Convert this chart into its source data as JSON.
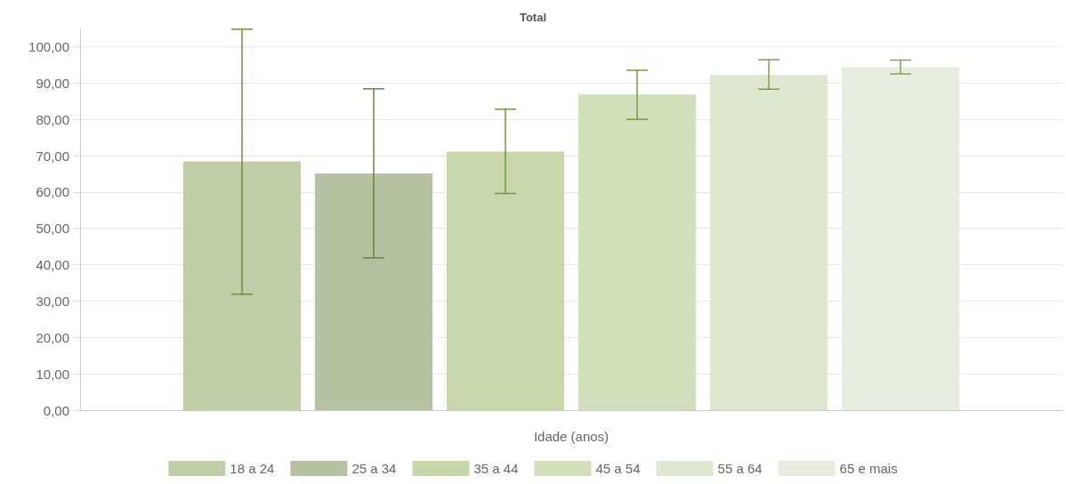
{
  "chart_data": {
    "type": "bar",
    "title": "Total",
    "xlabel": "Idade (anos)",
    "categories": [
      null
    ],
    "series": [
      {
        "name": "18 a 24",
        "color": "#bfcea6",
        "values": [
          68.4
        ],
        "errors": [
          [
            31.9,
            104.8
          ]
        ]
      },
      {
        "name": "25 a 34",
        "color": "#b5c2a2",
        "values": [
          65.1
        ],
        "errors": [
          [
            41.9,
            88.4
          ]
        ]
      },
      {
        "name": "35 a 44",
        "color": "#c8d7ab",
        "values": [
          71.1
        ],
        "errors": [
          [
            59.6,
            82.8
          ]
        ]
      },
      {
        "name": "45 a 54",
        "color": "#d2dfbb",
        "values": [
          86.8
        ],
        "errors": [
          [
            80.0,
            93.5
          ]
        ]
      },
      {
        "name": "55 a 64",
        "color": "#dee7d0",
        "values": [
          92.2
        ],
        "errors": [
          [
            88.3,
            96.4
          ]
        ]
      },
      {
        "name": "65 e mais",
        "color": "#e8eedf",
        "values": [
          94.4
        ],
        "errors": [
          [
            92.5,
            96.3
          ]
        ]
      }
    ],
    "ylim": [
      0,
      105
    ],
    "yticks": [
      {
        "value": 0,
        "label": "0,00"
      },
      {
        "value": 10,
        "label": "10,00"
      },
      {
        "value": 20,
        "label": "20,00"
      },
      {
        "value": 30,
        "label": "30,00"
      },
      {
        "value": 40,
        "label": "40,00"
      },
      {
        "value": 50,
        "label": "50,00"
      },
      {
        "value": 60,
        "label": "60,00"
      },
      {
        "value": 70,
        "label": "70,00"
      },
      {
        "value": 80,
        "label": "80,00"
      },
      {
        "value": 90,
        "label": "90,00"
      },
      {
        "value": 100,
        "label": "100,00"
      }
    ],
    "grid": "y",
    "legend": "bottom"
  }
}
